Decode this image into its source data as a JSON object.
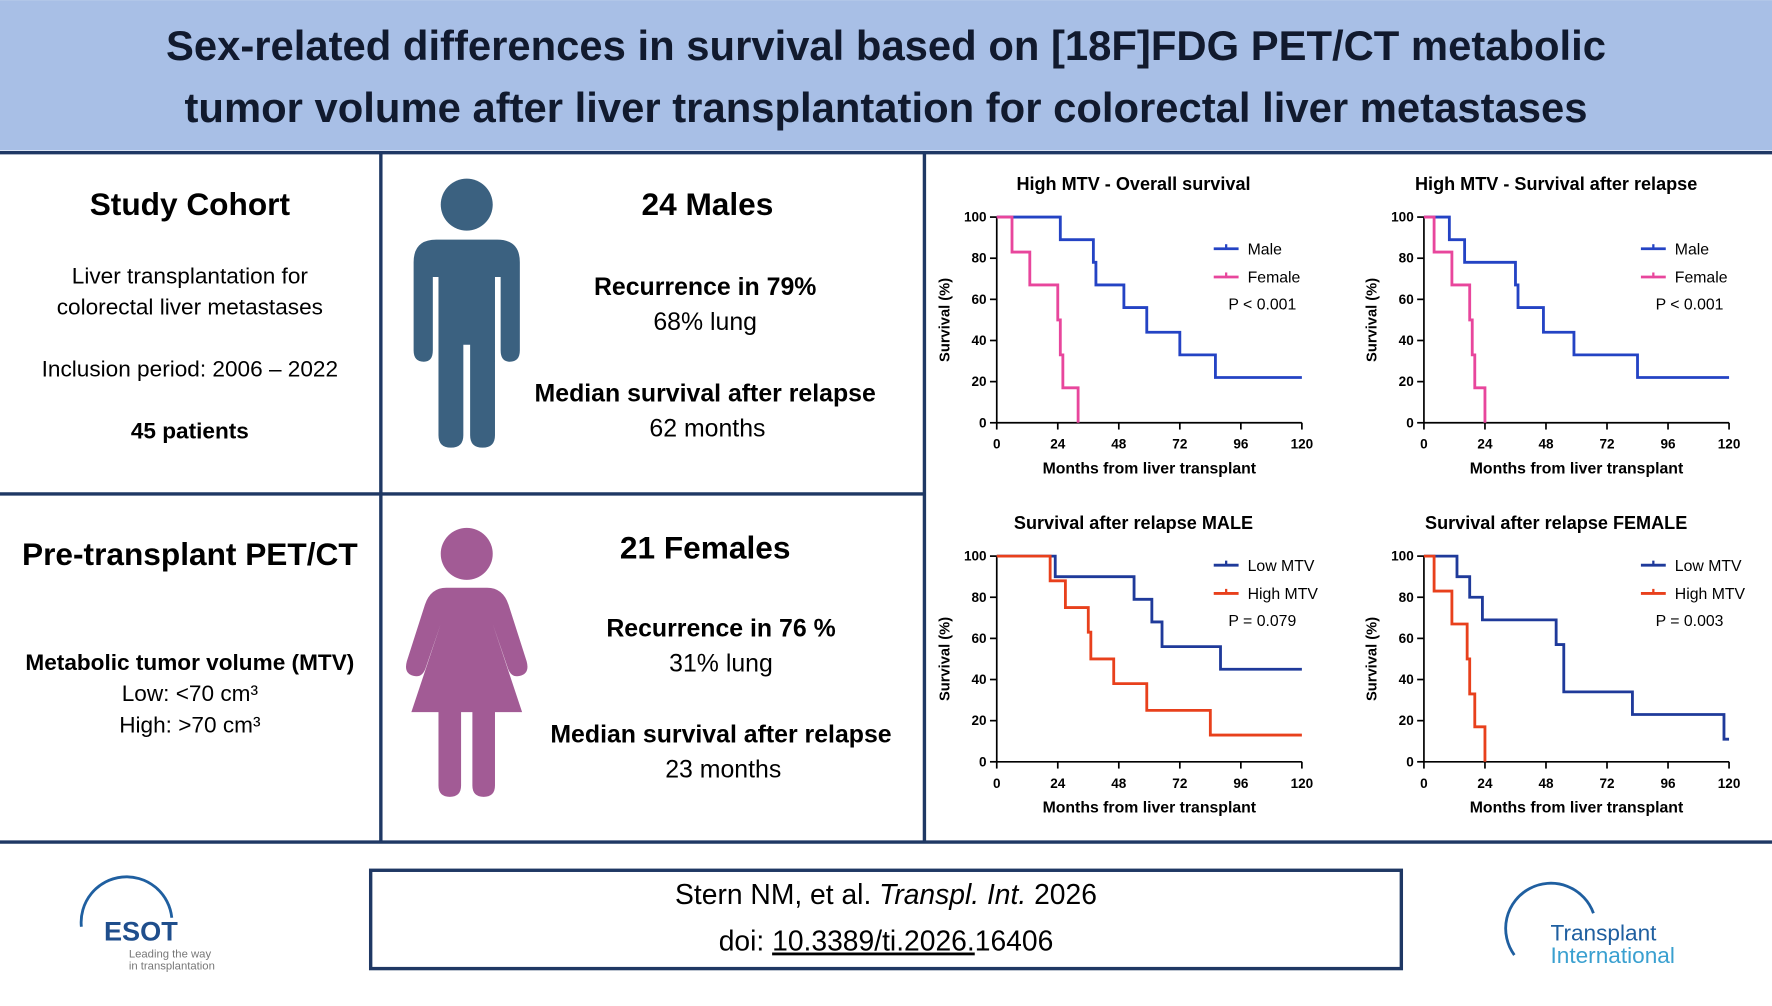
{
  "header": {
    "title": [
      "Sex-related differences in survival based on [18F]FDG PET/CT metabolic",
      "tumor volume after liver transplantation for colorectal liver metastases"
    ]
  },
  "cohort": {
    "title": "Study Cohort",
    "lines": [
      "Liver transplantation for",
      "colorectal liver metastases"
    ],
    "period": "Inclusion period: 2006 – 2022",
    "patients": "45 patients"
  },
  "pet": {
    "title": "Pre-transplant PET/CT",
    "mtv": "Metabolic tumor volume (MTV)",
    "low": "Low:  <70 cm³",
    "high": "High:  >70 cm³"
  },
  "males": {
    "title": "24 Males",
    "recurrence": "Recurrence in 79%",
    "lung": "68% lung",
    "median_label": "Median survival after relapse",
    "median": "62 months"
  },
  "females": {
    "title": "21 Females",
    "recurrence": "Recurrence in 76 %",
    "lung": "31% lung",
    "median_label": "Median survival after relapse",
    "median": "23 months"
  },
  "citation": {
    "authors": "Stern NM, et al.",
    "journal": "Transpl. Int.",
    "year": "2026",
    "doi_label": "doi:",
    "doi_link": "10.3389/ti.2026.",
    "doi_rest": "16406"
  },
  "logos": {
    "esot": "ESOT",
    "esot_tagline": [
      "Leading the way",
      "in transplantation"
    ],
    "ti": [
      "Transplant",
      "International"
    ]
  },
  "chart_data": [
    {
      "type": "step",
      "title": "High MTV - Overall survival",
      "x_label": "Months from liver transplant",
      "y_label": "Survival (%)",
      "annotation": "P < 0.001",
      "legend": "upper right",
      "xlim": [
        0,
        120
      ],
      "xticks": [
        0,
        24,
        48,
        72,
        96,
        120
      ],
      "ylim": [
        0,
        100
      ],
      "yticks": [
        0,
        20,
        40,
        60,
        80,
        100
      ],
      "series": [
        {
          "name": "Male",
          "color": "#2443c4",
          "x": [
            0,
            25,
            38,
            39,
            50,
            59,
            72,
            86,
            120
          ],
          "values": [
            100,
            89,
            78,
            67,
            56,
            44,
            33,
            22,
            22
          ]
        },
        {
          "name": "Female",
          "color": "#e8469c",
          "x": [
            0,
            6,
            13,
            24,
            25,
            26,
            32
          ],
          "values": [
            100,
            83,
            67,
            50,
            33,
            17,
            0
          ]
        }
      ]
    },
    {
      "type": "step",
      "title": "High MTV - Survival after relapse",
      "x_label": "Months from liver transplant",
      "y_label": "Survival (%)",
      "annotation": "P < 0.001",
      "legend": "upper right",
      "xlim": [
        0,
        120
      ],
      "xticks": [
        0,
        24,
        48,
        72,
        96,
        120
      ],
      "ylim": [
        0,
        100
      ],
      "yticks": [
        0,
        20,
        40,
        60,
        80,
        100
      ],
      "series": [
        {
          "name": "Male",
          "color": "#2443c4",
          "x": [
            0,
            10,
            16,
            36,
            37,
            47,
            59,
            84,
            120
          ],
          "values": [
            100,
            89,
            78,
            67,
            56,
            44,
            33,
            22,
            22
          ]
        },
        {
          "name": "Female",
          "color": "#e8469c",
          "x": [
            0,
            4,
            11,
            18,
            19,
            20,
            24
          ],
          "values": [
            100,
            83,
            67,
            50,
            33,
            17,
            0
          ]
        }
      ]
    },
    {
      "type": "step",
      "title": "Survival after relapse MALE",
      "x_label": "Months from liver transplant",
      "y_label": "Survival (%)",
      "annotation": "P = 0.079",
      "legend": "upper right",
      "xlim": [
        0,
        120
      ],
      "xticks": [
        0,
        24,
        48,
        72,
        96,
        120
      ],
      "ylim": [
        0,
        100
      ],
      "yticks": [
        0,
        20,
        40,
        60,
        80,
        100
      ],
      "series": [
        {
          "name": "Low MTV",
          "color": "#1f3a9a",
          "x": [
            0,
            23,
            54,
            61,
            65,
            88,
            120
          ],
          "values": [
            100,
            90,
            79,
            68,
            56,
            45,
            45
          ]
        },
        {
          "name": "High MTV",
          "color": "#e8401c",
          "x": [
            0,
            21,
            27,
            36,
            37,
            46,
            59,
            84,
            120
          ],
          "values": [
            100,
            88,
            75,
            63,
            50,
            38,
            25,
            13,
            13
          ]
        }
      ]
    },
    {
      "type": "step",
      "title": "Survival after relapse FEMALE",
      "x_label": "Months from liver transplant",
      "y_label": "Survival (%)",
      "annotation": "P = 0.003",
      "legend": "upper right",
      "xlim": [
        0,
        120
      ],
      "xticks": [
        0,
        24,
        48,
        72,
        96,
        120
      ],
      "ylim": [
        0,
        100
      ],
      "yticks": [
        0,
        20,
        40,
        60,
        80,
        100
      ],
      "series": [
        {
          "name": "Low MTV",
          "color": "#1f3a9a",
          "x": [
            0,
            13,
            18,
            23,
            52,
            55,
            82,
            118,
            120
          ],
          "values": [
            100,
            90,
            80,
            69,
            57,
            34,
            23,
            11,
            11
          ]
        },
        {
          "name": "High MTV",
          "color": "#e8401c",
          "x": [
            0,
            4,
            11,
            17,
            18,
            20,
            24
          ],
          "values": [
            100,
            83,
            67,
            50,
            33,
            17,
            0
          ]
        }
      ]
    }
  ]
}
